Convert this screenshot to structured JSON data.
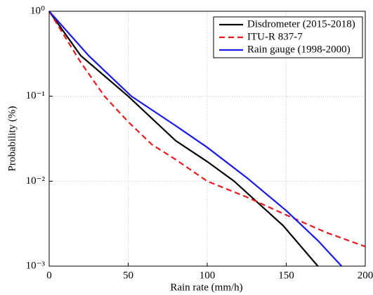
{
  "chart_data": {
    "type": "line",
    "xlabel": "Rain rate (mm/h)",
    "ylabel": "Probability (%)",
    "xlim": [
      0,
      200
    ],
    "ylim": [
      0.001,
      1
    ],
    "log_y": true,
    "xticks": [
      0,
      50,
      100,
      150,
      200
    ],
    "yticks": [
      {
        "value": 1,
        "label": "10⁰"
      },
      {
        "value": 0.1,
        "label": "10⁻¹"
      },
      {
        "value": 0.01,
        "label": "10⁻²"
      },
      {
        "value": 0.001,
        "label": "10⁻³"
      }
    ],
    "grid": true,
    "legend": "upper right",
    "series": [
      {
        "name": "Disdrometer (2015-2018)",
        "color": "#000000",
        "dash": "solid",
        "x": [
          0,
          20,
          50,
          80,
          100,
          117,
          148,
          170
        ],
        "values": [
          1,
          0.3,
          0.1,
          0.03,
          0.017,
          0.01,
          0.003,
          0.001
        ]
      },
      {
        "name": "ITU-R 837-7",
        "color": "#e8191e",
        "dash": "dashed",
        "x": [
          0,
          10,
          20,
          35,
          50,
          65,
          80,
          100,
          125,
          150,
          175,
          200
        ],
        "values": [
          1,
          0.5,
          0.25,
          0.1,
          0.05,
          0.027,
          0.018,
          0.01,
          0.0065,
          0.004,
          0.0025,
          0.0017
        ]
      },
      {
        "name": "Rain gauge (1998-2000)",
        "color": "#1a1ae6",
        "dash": "solid",
        "x": [
          0,
          25,
          52,
          80,
          100,
          125,
          150,
          170,
          185
        ],
        "values": [
          1,
          0.3,
          0.1,
          0.045,
          0.025,
          0.011,
          0.0045,
          0.002,
          0.001
        ]
      }
    ]
  }
}
